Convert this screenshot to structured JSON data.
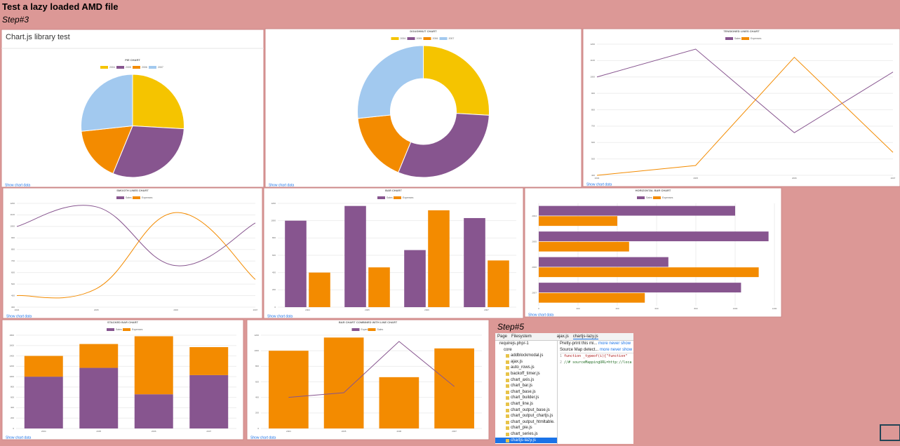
{
  "page": {
    "title": "Test a lazy loaded AMD file",
    "step3": "Step#3",
    "step5": "Step#5",
    "panel_heading": "Chart.js library test",
    "show_data": "Show chart data",
    "devtools": {
      "tab_page": "Page",
      "tab_fs": "Filesystem",
      "file_tab1": "ajax.js",
      "file_tab2": "chartjs-lazy.js",
      "root": "requirejs.php/-1",
      "folder": "core",
      "notice1": "Pretty-print this mi...",
      "notice2": "Source Map detect...",
      "more": "more",
      "never": "never show",
      "files": [
        "addblockmodal.js",
        "ajax.js",
        "auto_rows.js",
        "backoff_timer.js",
        "chart_axis.js",
        "chart_bar.js",
        "chart_base.js",
        "chart_builder.js",
        "chart_line.js",
        "chart_output_base.js",
        "chart_output_chartjs.js",
        "chart_output_htmltable.",
        "chart_pie.js",
        "chart_series.js",
        "chartjs-lazy.js"
      ],
      "code": [
        "function _typeof(i){\"function\"",
        "//# sourceMappingURL=http://loca"
      ],
      "line_numbers": [
        "1",
        "2"
      ]
    }
  },
  "chart_data": [
    {
      "type": "pie",
      "title": "PIE CHART",
      "categories": [
        "2004",
        "2005",
        "2006",
        "2007"
      ],
      "values": [
        1000,
        1170,
        660,
        1030
      ],
      "colors": [
        "#f5c400",
        "#87558f",
        "#f38b00",
        "#a2c9ef"
      ]
    },
    {
      "type": "doughnut",
      "title": "DOUGHNUT CHART",
      "categories": [
        "2004",
        "2005",
        "2006",
        "2007"
      ],
      "values": [
        1000,
        1170,
        660,
        1030
      ],
      "colors": [
        "#f5c400",
        "#87558f",
        "#f38b00",
        "#a2c9ef"
      ]
    },
    {
      "type": "line",
      "title": "TENSIONED LINES CHART",
      "categories": [
        "2004",
        "2005",
        "2006",
        "2007"
      ],
      "series": [
        {
          "name": "Sales",
          "color": "#87558f",
          "values": [
            1000,
            1170,
            660,
            1030
          ]
        },
        {
          "name": "Expenses",
          "color": "#f38b00",
          "values": [
            400,
            460,
            1120,
            540
          ]
        }
      ],
      "ylim": [
        400,
        1200
      ],
      "yticks": [
        400,
        500,
        600,
        700,
        800,
        900,
        1000,
        1100,
        1200
      ],
      "smooth": false
    },
    {
      "type": "line",
      "title": "SMOOTH LINES CHART",
      "categories": [
        "2004",
        "2005",
        "2006",
        "2007"
      ],
      "series": [
        {
          "name": "Sales",
          "color": "#87558f",
          "values": [
            1000,
            1170,
            660,
            1030
          ]
        },
        {
          "name": "Expenses",
          "color": "#f38b00",
          "values": [
            400,
            460,
            1120,
            540
          ]
        }
      ],
      "ylim": [
        300,
        1200
      ],
      "yticks": [
        300,
        400,
        500,
        600,
        700,
        800,
        900,
        1000,
        1100,
        1200
      ],
      "smooth": true
    },
    {
      "type": "bar",
      "title": "BAR CHART",
      "categories": [
        "2004",
        "2005",
        "2006",
        "2007"
      ],
      "series": [
        {
          "name": "Sales",
          "color": "#87558f",
          "values": [
            1000,
            1170,
            660,
            1030
          ]
        },
        {
          "name": "Expenses",
          "color": "#f38b00",
          "values": [
            400,
            460,
            1120,
            540
          ]
        }
      ],
      "ylim": [
        0,
        1200
      ],
      "yticks": [
        0,
        200,
        400,
        600,
        800,
        1000,
        1200
      ]
    },
    {
      "type": "hbar",
      "title": "HORIZONTAL BAR CHART",
      "categories": [
        "2004",
        "2005",
        "2006",
        "2007"
      ],
      "series": [
        {
          "name": "Sales",
          "color": "#87558f",
          "values": [
            1000,
            1170,
            660,
            1030
          ]
        },
        {
          "name": "Expenses",
          "color": "#f38b00",
          "values": [
            400,
            460,
            1120,
            540
          ]
        }
      ],
      "xlim": [
        0,
        1200
      ],
      "xticks": [
        0,
        200,
        400,
        600,
        800,
        1000,
        1200
      ]
    },
    {
      "type": "stacked",
      "title": "STACKED BAR CHART",
      "categories": [
        "2004",
        "2005",
        "2006",
        "2007"
      ],
      "series": [
        {
          "name": "Sales",
          "color": "#87558f",
          "values": [
            1000,
            1170,
            660,
            1030
          ]
        },
        {
          "name": "Expenses",
          "color": "#f38b00",
          "values": [
            400,
            460,
            1120,
            540
          ]
        }
      ],
      "ylim": [
        0,
        1800
      ],
      "yticks": [
        0,
        200,
        400,
        600,
        800,
        1000,
        1200,
        1400,
        1600,
        1800
      ]
    },
    {
      "type": "combo",
      "title": "BAR CHART COMBINED WITH LINE CHART",
      "categories": [
        "2004",
        "2005",
        "2006",
        "2007"
      ],
      "series": [
        {
          "name": "Expenses",
          "color": "#87558f",
          "values": [
            400,
            460,
            1120,
            540
          ],
          "type": "line"
        },
        {
          "name": "Sales",
          "color": "#f38b00",
          "values": [
            1000,
            1170,
            660,
            1030
          ],
          "type": "bar"
        }
      ],
      "ylim": [
        0,
        1200
      ],
      "yticks": [
        0,
        200,
        400,
        600,
        800,
        1000,
        1200
      ]
    }
  ]
}
